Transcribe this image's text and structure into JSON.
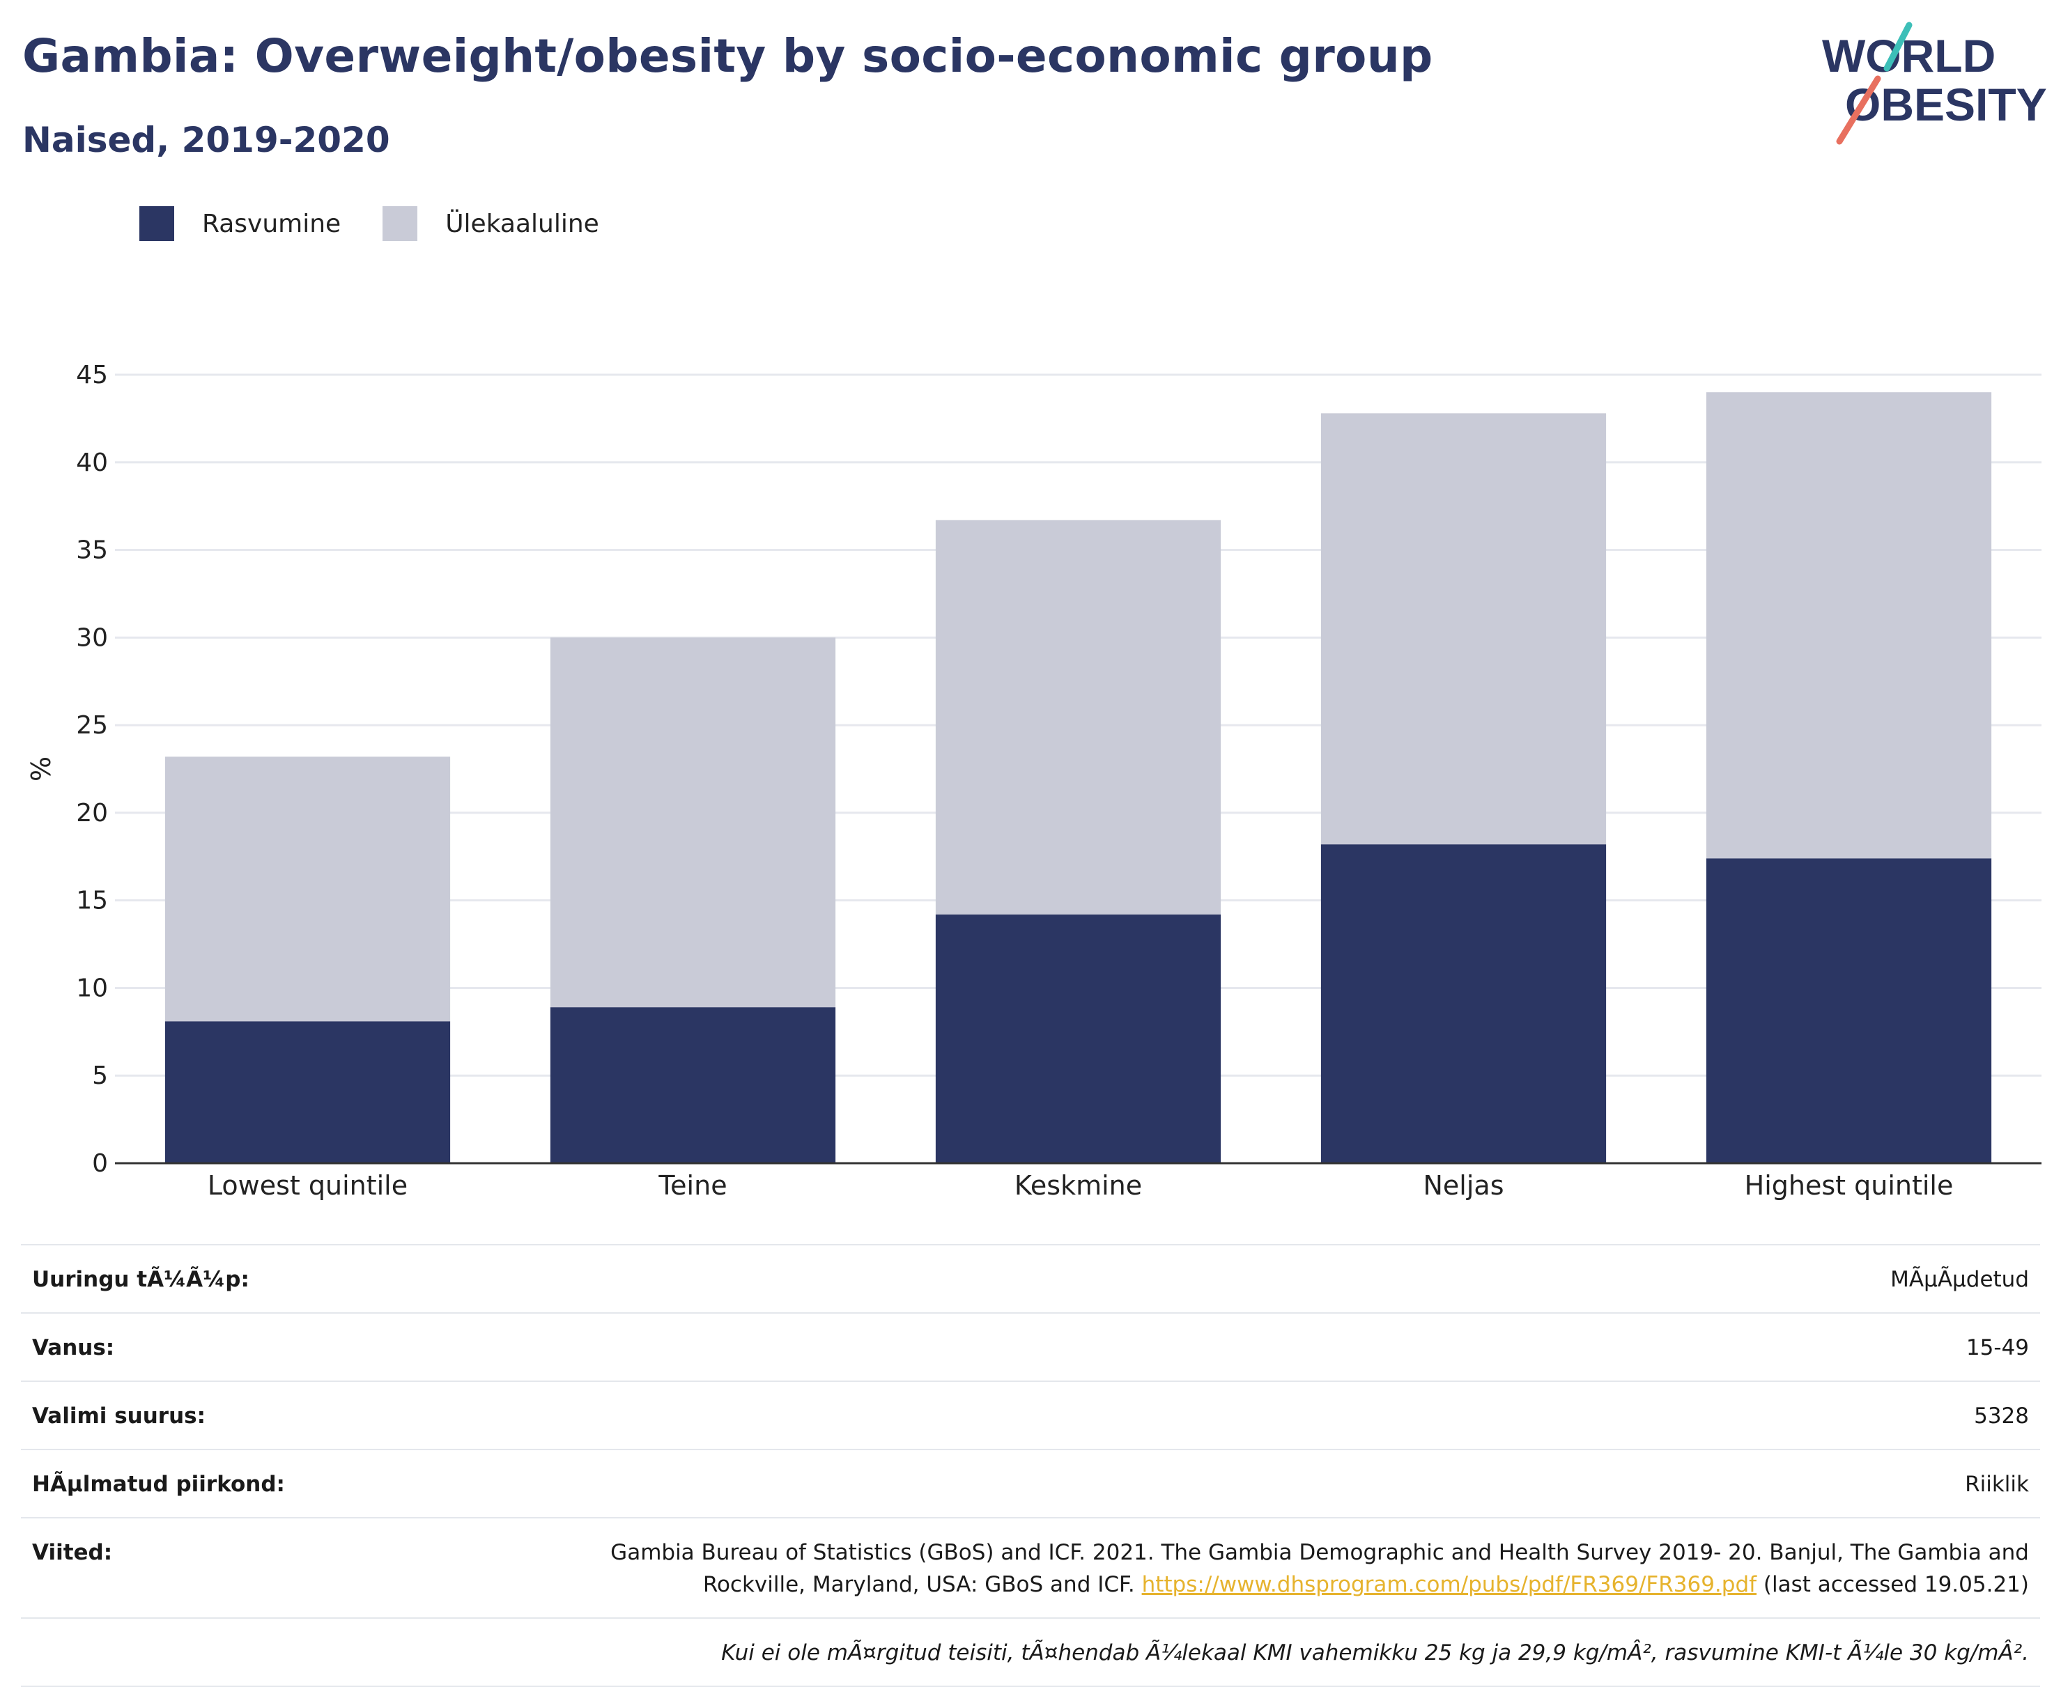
{
  "header": {
    "title": "Gambia: Overweight/obesity by socio-economic group",
    "subtitle": "Naised, 2019-2020"
  },
  "logo": {
    "line1": "WORLD",
    "line2": "OBESITY"
  },
  "colors": {
    "obesity": "#2b3663",
    "overweight": "#c9cbd7",
    "title": "#2b3663",
    "link": "#e6b32e",
    "logo_teal": "#3dbfb8",
    "logo_coral": "#e8705f"
  },
  "legend": {
    "items": [
      {
        "label": "Rasvumine",
        "color": "#2b3663"
      },
      {
        "label": "Ülekaaluline",
        "color": "#c9cbd7"
      }
    ]
  },
  "chart_data": {
    "type": "bar",
    "stacked": true,
    "categories": [
      "Lowest quintile",
      "Teine",
      "Keskmine",
      "Neljas",
      "Highest quintile"
    ],
    "series": [
      {
        "name": "Rasvumine",
        "values": [
          8.1,
          8.9,
          14.2,
          18.2,
          17.4
        ]
      },
      {
        "name": "Ülekaaluline",
        "values": [
          15.1,
          21.1,
          22.5,
          24.6,
          26.6
        ]
      }
    ],
    "ylabel": "%",
    "ylim": [
      0,
      45
    ],
    "yticks": [
      0,
      5,
      10,
      15,
      20,
      25,
      30,
      35,
      40,
      45
    ],
    "grid": true,
    "legend_position": "top-left"
  },
  "meta": {
    "rows": [
      {
        "label": "Uuringu tÃ¼Ã¼p:",
        "value": "MÃµÃµdetud"
      },
      {
        "label": "Vanus:",
        "value": "15-49"
      },
      {
        "label": "Valimi suurus:",
        "value": "5328"
      },
      {
        "label": "HÃµlmatud piirkond:",
        "value": "Riiklik"
      }
    ],
    "references": {
      "label": "Viited:",
      "text_line1": "Gambia Bureau of Statistics (GBoS) and ICF. 2021. The Gambia Demographic and Health Survey 2019- 20. Banjul, The Gambia and",
      "text_line2_prefix": "Rockville, Maryland, USA: GBoS and ICF.",
      "link": "https://www.dhsprogram.com/pubs/pdf/FR369/FR369.pdf",
      "suffix": "(last accessed 19.05.21)"
    },
    "note": "Kui ei ole mÃ¤rgitud teisiti, tÃ¤hendab Ã¼lekaal KMI vahemikku 25 kg ja 29,9 kg/mÂ², rasvumine KMI-t Ã¼le 30 kg/mÂ²."
  }
}
